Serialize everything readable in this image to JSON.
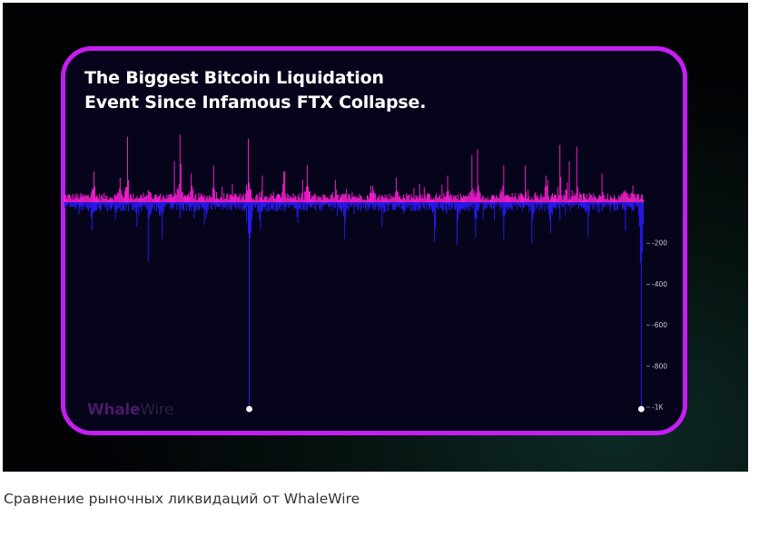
{
  "article": {
    "caption": "Сравнение рыночных ликвидаций от WhaleWire"
  },
  "brand": {
    "logo_part1": "Whale",
    "logo_part2": "Wire"
  },
  "colors": {
    "frame": "#c61df2",
    "long_liquidations": "#ff1fd6",
    "short_liquidations": "#2a1bff",
    "background": "#05041a"
  },
  "chart_data": {
    "type": "bar",
    "title": "The Biggest Bitcoin Liquidation\nEvent Since Infamous FTX Collapse.",
    "xlabel": "",
    "ylabel": "",
    "y_axis_position": "right",
    "y_ticks": [
      {
        "value": -200,
        "label": "-200"
      },
      {
        "value": -400,
        "label": "-400"
      },
      {
        "value": -600,
        "label": "-600"
      },
      {
        "value": -800,
        "label": "-800"
      },
      {
        "value": -1000,
        "label": "-1K"
      }
    ],
    "ylim": [
      -1000,
      330
    ],
    "grid": false,
    "legend": "none",
    "bar_count": 620,
    "series": [
      {
        "color": "#ff1fd6",
        "baseline": 28,
        "noise": 18,
        "peaks": [
          [
            32,
            150
          ],
          [
            60,
            120
          ],
          [
            68,
            320
          ],
          [
            90,
            60
          ],
          [
            118,
            200
          ],
          [
            124,
            330
          ],
          [
            136,
            140
          ],
          [
            160,
            180
          ],
          [
            180,
            90
          ],
          [
            197,
            310
          ],
          [
            212,
            130
          ],
          [
            235,
            150
          ],
          [
            260,
            180
          ],
          [
            290,
            110
          ],
          [
            330,
            80
          ],
          [
            355,
            120
          ],
          [
            380,
            90
          ],
          [
            410,
            130
          ],
          [
            436,
            230
          ],
          [
            442,
            260
          ],
          [
            470,
            180
          ],
          [
            493,
            180
          ],
          [
            515,
            130
          ],
          [
            530,
            280
          ],
          [
            540,
            200
          ],
          [
            548,
            270
          ],
          [
            575,
            140
          ],
          [
            600,
            60
          ]
        ]
      },
      {
        "color": "#2a1bff",
        "baseline": -25,
        "noise": 20,
        "peaks": [
          [
            30,
            -140
          ],
          [
            78,
            -120
          ],
          [
            90,
            -290
          ],
          [
            105,
            -180
          ],
          [
            150,
            -110
          ],
          [
            198,
            -1000
          ],
          [
            210,
            -130
          ],
          [
            250,
            -100
          ],
          [
            300,
            -180
          ],
          [
            340,
            -120
          ],
          [
            396,
            -190
          ],
          [
            420,
            -210
          ],
          [
            440,
            -170
          ],
          [
            470,
            -180
          ],
          [
            500,
            -200
          ],
          [
            520,
            -150
          ],
          [
            560,
            -170
          ],
          [
            600,
            -140
          ],
          [
            617,
            -1000
          ]
        ]
      }
    ],
    "markers": [
      {
        "bar": 198,
        "value": -1000
      },
      {
        "bar": 617,
        "value": -1000
      }
    ]
  }
}
